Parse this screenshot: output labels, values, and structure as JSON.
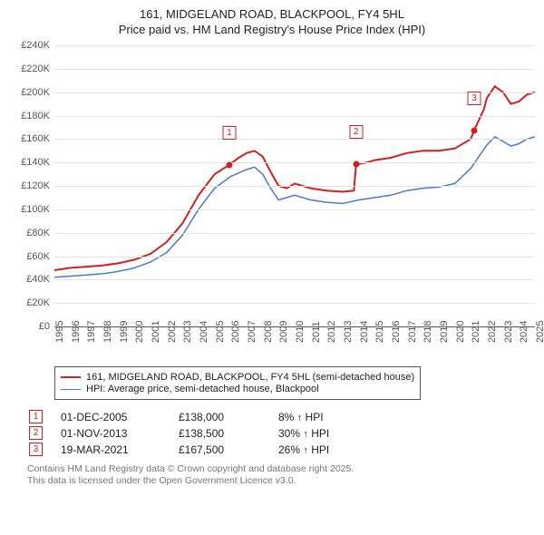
{
  "title": {
    "line1": "161, MIDGELAND ROAD, BLACKPOOL, FY4 5HL",
    "line2": "Price paid vs. HM Land Registry's House Price Index (HPI)"
  },
  "chart": {
    "type": "line",
    "background_color": "#ffffff",
    "grid_color": "#e5e5e5",
    "axis_color": "#555555",
    "label_fontsize": 11,
    "title_fontsize": 13,
    "x": {
      "min": 1995,
      "max": 2025,
      "ticks": [
        1995,
        1996,
        1997,
        1998,
        1999,
        2000,
        2001,
        2002,
        2003,
        2004,
        2005,
        2006,
        2007,
        2008,
        2009,
        2010,
        2011,
        2012,
        2013,
        2014,
        2015,
        2016,
        2017,
        2018,
        2019,
        2020,
        2021,
        2022,
        2023,
        2024,
        2025
      ]
    },
    "y": {
      "min": 0,
      "max": 240000,
      "ticks": [
        0,
        20000,
        40000,
        60000,
        80000,
        100000,
        120000,
        140000,
        160000,
        180000,
        200000,
        220000,
        240000
      ],
      "tick_labels": [
        "£0",
        "£20K",
        "£40K",
        "£60K",
        "£80K",
        "£100K",
        "£120K",
        "£140K",
        "£160K",
        "£180K",
        "£200K",
        "£220K",
        "£240K"
      ]
    },
    "series": [
      {
        "id": "price_paid",
        "label": "161, MIDGELAND ROAD, BLACKPOOL, FY4 5HL (semi-detached house)",
        "color": "#d11f1f",
        "line_width": 2,
        "points": [
          [
            1995,
            48000
          ],
          [
            1996,
            50000
          ],
          [
            1997,
            51000
          ],
          [
            1998,
            52000
          ],
          [
            1999,
            54000
          ],
          [
            2000,
            57000
          ],
          [
            2001,
            62000
          ],
          [
            2002,
            72000
          ],
          [
            2003,
            88000
          ],
          [
            2004,
            112000
          ],
          [
            2005,
            130000
          ],
          [
            2005.92,
            138000
          ],
          [
            2006.5,
            144000
          ],
          [
            2007,
            148000
          ],
          [
            2007.5,
            150000
          ],
          [
            2008,
            145000
          ],
          [
            2008.5,
            132000
          ],
          [
            2009,
            120000
          ],
          [
            2009.5,
            118000
          ],
          [
            2010,
            122000
          ],
          [
            2011,
            118000
          ],
          [
            2012,
            116000
          ],
          [
            2013,
            115000
          ],
          [
            2013.7,
            116000
          ],
          [
            2013.83,
            138500
          ],
          [
            2014.5,
            140000
          ],
          [
            2015,
            142000
          ],
          [
            2016,
            144000
          ],
          [
            2017,
            148000
          ],
          [
            2018,
            150000
          ],
          [
            2019,
            150000
          ],
          [
            2020,
            152000
          ],
          [
            2021.0,
            160000
          ],
          [
            2021.21,
            167500
          ],
          [
            2021.8,
            185000
          ],
          [
            2022,
            195000
          ],
          [
            2022.5,
            205000
          ],
          [
            2023,
            200000
          ],
          [
            2023.5,
            190000
          ],
          [
            2024,
            192000
          ],
          [
            2024.5,
            198000
          ],
          [
            2025,
            200000
          ]
        ]
      },
      {
        "id": "hpi",
        "label": "HPI: Average price, semi-detached house, Blackpool",
        "color": "#4a7bc8",
        "line_width": 1.5,
        "points": [
          [
            1995,
            42000
          ],
          [
            1996,
            43000
          ],
          [
            1997,
            44000
          ],
          [
            1998,
            45000
          ],
          [
            1999,
            47000
          ],
          [
            2000,
            50000
          ],
          [
            2001,
            55000
          ],
          [
            2002,
            63000
          ],
          [
            2003,
            78000
          ],
          [
            2004,
            100000
          ],
          [
            2005,
            118000
          ],
          [
            2006,
            128000
          ],
          [
            2007,
            134000
          ],
          [
            2007.5,
            136000
          ],
          [
            2008,
            130000
          ],
          [
            2008.5,
            118000
          ],
          [
            2009,
            108000
          ],
          [
            2010,
            112000
          ],
          [
            2011,
            108000
          ],
          [
            2012,
            106000
          ],
          [
            2013,
            105000
          ],
          [
            2014,
            108000
          ],
          [
            2015,
            110000
          ],
          [
            2016,
            112000
          ],
          [
            2017,
            116000
          ],
          [
            2018,
            118000
          ],
          [
            2019,
            119000
          ],
          [
            2020,
            122000
          ],
          [
            2021,
            135000
          ],
          [
            2021.5,
            145000
          ],
          [
            2022,
            155000
          ],
          [
            2022.5,
            162000
          ],
          [
            2023,
            158000
          ],
          [
            2023.5,
            154000
          ],
          [
            2024,
            156000
          ],
          [
            2024.5,
            160000
          ],
          [
            2025,
            162000
          ]
        ]
      }
    ],
    "sale_markers": [
      {
        "n": "1",
        "x": 2005.92,
        "y": 138000,
        "marker_y_offset": -28
      },
      {
        "n": "2",
        "x": 2013.83,
        "y": 138500,
        "marker_y_offset": -28
      },
      {
        "n": "3",
        "x": 2021.21,
        "y": 167500,
        "marker_y_offset": -28
      }
    ],
    "marker_border_color": "#d11f1f",
    "marker_text_color": "#d11f1f",
    "sale_dot_color": "#d11f1f"
  },
  "legend": {
    "rows": [
      {
        "series": "price_paid"
      },
      {
        "series": "hpi"
      }
    ]
  },
  "sales": [
    {
      "n": "1",
      "date": "01-DEC-2005",
      "price": "£138,000",
      "pct": "8%",
      "arrow": "↑",
      "suffix": "HPI"
    },
    {
      "n": "2",
      "date": "01-NOV-2013",
      "price": "£138,500",
      "pct": "30%",
      "arrow": "↑",
      "suffix": "HPI"
    },
    {
      "n": "3",
      "date": "19-MAR-2021",
      "price": "£167,500",
      "pct": "26%",
      "arrow": "↑",
      "suffix": "HPI"
    }
  ],
  "footer": {
    "line1": "Contains HM Land Registry data © Crown copyright and database right 2025.",
    "line2": "This data is licensed under the Open Government Licence v3.0."
  }
}
